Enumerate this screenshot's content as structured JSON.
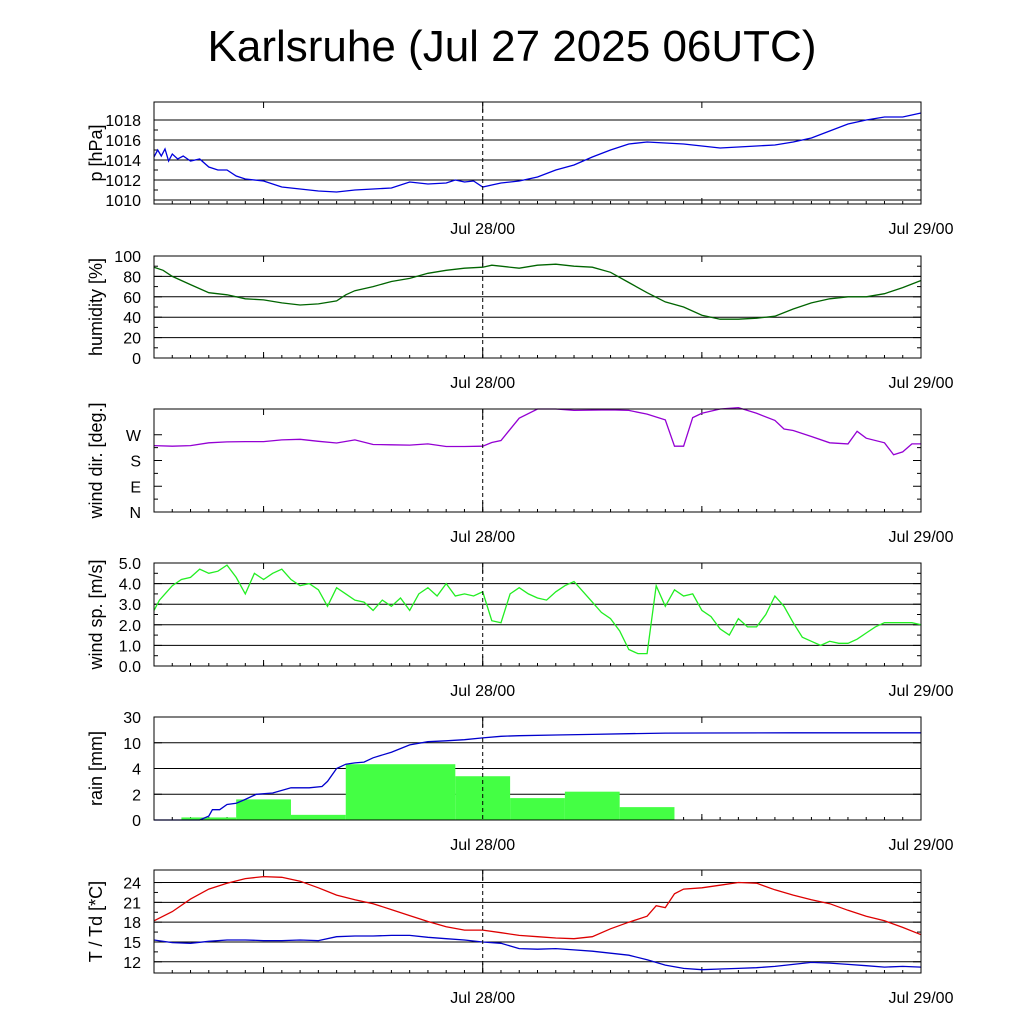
{
  "title": "Karlsruhe (Jul 27 2025 06UTC)",
  "colors": {
    "pressure": "#0000dd",
    "humidity": "#006400",
    "wind_dir": "#9400d3",
    "wind_speed": "#22ee22",
    "rain_bar": "#44ff44",
    "rain_cum": "#0000cc",
    "temperature": "#dd0000",
    "dewpoint": "#0000cc"
  },
  "x_axis": {
    "start": "Jul 27 06:00",
    "end": "Jul 29 00:00",
    "tick_labels": [
      "Jul 28/00",
      "Jul 29/00"
    ],
    "tick_hours": [
      18,
      42
    ],
    "minor_tick_hours": [
      6,
      30
    ],
    "reference_line_hour": 18,
    "range_hours": [
      0,
      42
    ]
  },
  "chart_data": [
    {
      "id": "pressure",
      "type": "line",
      "ylabel": "p [hPa]",
      "ylim": [
        1009.6,
        1019.8
      ],
      "yticks": [
        1010,
        1012,
        1014,
        1016,
        1018
      ],
      "ytick_labels": [
        "1010",
        "1012",
        "1014",
        "1016",
        "1018"
      ],
      "grid": true,
      "series": [
        {
          "color_key": "pressure",
          "x": [
            0,
            0.2,
            0.4,
            0.6,
            0.8,
            1,
            1.3,
            1.6,
            2,
            2.5,
            3,
            3.5,
            4,
            4.5,
            5,
            6,
            7,
            8,
            9,
            10,
            11,
            12,
            13,
            14,
            15,
            16,
            16.5,
            17,
            17.5,
            18,
            18.5,
            19,
            20,
            21,
            22,
            23,
            24,
            25,
            26,
            27,
            28,
            29,
            30,
            31,
            32,
            33,
            34,
            35,
            36,
            37,
            38,
            39,
            40,
            41,
            42
          ],
          "y": [
            1014.3,
            1015.0,
            1014.4,
            1015.1,
            1013.9,
            1014.6,
            1014.1,
            1014.4,
            1013.9,
            1014.1,
            1013.3,
            1013.0,
            1013.0,
            1012.4,
            1012.1,
            1011.9,
            1011.3,
            1011.1,
            1010.9,
            1010.8,
            1011.0,
            1011.1,
            1011.2,
            1011.8,
            1011.6,
            1011.7,
            1012.0,
            1011.8,
            1011.9,
            1011.3,
            1011.5,
            1011.7,
            1011.9,
            1012.3,
            1013.0,
            1013.5,
            1014.3,
            1015.0,
            1015.6,
            1015.8,
            1015.7,
            1015.6,
            1015.4,
            1015.2,
            1015.3,
            1015.4,
            1015.5,
            1015.8,
            1016.2,
            1016.9,
            1017.6,
            1018.0,
            1018.3,
            1018.3,
            1018.7
          ]
        }
      ]
    },
    {
      "id": "humidity",
      "type": "line",
      "ylabel": "humidity [%]",
      "ylim": [
        0,
        100
      ],
      "yticks": [
        0,
        20,
        40,
        60,
        80,
        100
      ],
      "ytick_labels": [
        "0",
        "20",
        "40",
        "60",
        "80",
        "100"
      ],
      "grid": true,
      "series": [
        {
          "color_key": "humidity",
          "x": [
            0,
            0.5,
            1,
            2,
            3,
            4,
            5,
            6,
            7,
            8,
            9,
            10,
            10.5,
            11,
            12,
            13,
            14,
            15,
            16,
            17,
            18,
            18.5,
            19,
            20,
            21,
            22,
            23,
            24,
            25,
            26,
            27,
            28,
            29,
            30,
            31,
            32,
            33,
            34,
            35,
            36,
            37,
            38,
            39,
            40,
            41,
            42
          ],
          "y": [
            89,
            86,
            80,
            72,
            64,
            62,
            58,
            57,
            54,
            52,
            53,
            56,
            62,
            66,
            70,
            75,
            78,
            83,
            86,
            88,
            89,
            91,
            90,
            88,
            91,
            92,
            90,
            89,
            84,
            74,
            64,
            55,
            50,
            42,
            38,
            38,
            39,
            41,
            48,
            54,
            58,
            60,
            60,
            63,
            69,
            76
          ]
        }
      ]
    },
    {
      "id": "wind_dir",
      "type": "line",
      "ylabel": "wind dir. [deg.]",
      "ylim": [
        0,
        360
      ],
      "yticks": [
        0,
        90,
        180,
        270
      ],
      "ytick_labels": [
        "N",
        "E",
        "S",
        "W"
      ],
      "grid": false,
      "series": [
        {
          "color_key": "wind_dir",
          "x": [
            0,
            1,
            2,
            3,
            4,
            5,
            6,
            7,
            8,
            9,
            10,
            11,
            12,
            13,
            14,
            15,
            16,
            17,
            18,
            18.5,
            19,
            20,
            21,
            22,
            23,
            24,
            25,
            26,
            27,
            28,
            28.5,
            29,
            29.5,
            30,
            31,
            32,
            33,
            34,
            34.5,
            35,
            36,
            37,
            38,
            38.5,
            39,
            40,
            40.5,
            41,
            41.5,
            42
          ],
          "y": [
            232,
            230,
            232,
            242,
            245,
            246,
            246,
            252,
            254,
            247,
            241,
            252,
            236,
            235,
            234,
            238,
            229,
            229,
            230,
            243,
            250,
            328,
            360,
            360,
            355,
            356,
            357,
            355,
            342,
            322,
            230,
            230,
            330,
            345,
            360,
            365,
            345,
            320,
            290,
            285,
            264,
            242,
            238,
            282,
            258,
            242,
            200,
            210,
            238,
            238
          ]
        }
      ]
    },
    {
      "id": "wind_speed",
      "type": "line",
      "ylabel": "wind sp. [m/s]",
      "ylim": [
        0,
        5
      ],
      "yticks": [
        0,
        1,
        2,
        3,
        4,
        5
      ],
      "ytick_labels": [
        "0.0",
        "1.0",
        "2.0",
        "3.0",
        "4.0",
        "5.0"
      ],
      "grid": true,
      "series": [
        {
          "color_key": "wind_speed",
          "x": [
            0,
            0.3,
            0.6,
            1,
            1.5,
            2,
            2.5,
            3,
            3.5,
            4,
            4.5,
            5,
            5.5,
            6,
            6.5,
            7,
            7.5,
            8,
            8.5,
            9,
            9.5,
            10,
            10.5,
            11,
            11.5,
            12,
            12.5,
            13,
            13.5,
            14,
            14.5,
            15,
            15.5,
            16,
            16.5,
            17,
            17.5,
            18,
            18.5,
            19,
            19.5,
            20,
            20.5,
            21,
            21.5,
            22,
            22.5,
            23,
            23.5,
            24,
            24.5,
            25,
            25.5,
            26,
            26.5,
            27,
            27.5,
            28,
            28.5,
            29,
            29.5,
            30,
            30.5,
            31,
            31.5,
            32,
            32.5,
            33,
            33.5,
            34,
            34.5,
            35,
            35.5,
            36,
            36.5,
            37,
            37.5,
            38,
            38.5,
            39,
            39.5,
            40,
            40.5,
            41,
            41.5,
            42
          ],
          "y": [
            2.7,
            3.2,
            3.5,
            3.9,
            4.2,
            4.3,
            4.7,
            4.5,
            4.6,
            4.9,
            4.3,
            3.5,
            4.5,
            4.2,
            4.5,
            4.7,
            4.2,
            3.9,
            4.0,
            3.7,
            2.9,
            3.8,
            3.5,
            3.2,
            3.1,
            2.7,
            3.2,
            2.9,
            3.3,
            2.7,
            3.5,
            3.8,
            3.4,
            4.0,
            3.4,
            3.5,
            3.4,
            3.6,
            2.2,
            2.1,
            3.5,
            3.8,
            3.5,
            3.3,
            3.2,
            3.6,
            3.9,
            4.1,
            3.6,
            3.1,
            2.6,
            2.3,
            1.7,
            0.8,
            0.6,
            0.6,
            3.9,
            2.9,
            3.7,
            3.4,
            3.5,
            2.7,
            2.4,
            1.8,
            1.5,
            2.3,
            1.9,
            1.9,
            2.5,
            3.4,
            2.9,
            2.1,
            1.4,
            1.2,
            1.0,
            1.2,
            1.1,
            1.1,
            1.3,
            1.6,
            1.9,
            2.1,
            2.1,
            2.1,
            2.1,
            2.0
          ]
        }
      ]
    },
    {
      "id": "rain",
      "type": "bar",
      "ylabel": "rain [mm]",
      "ylim": [
        0,
        30
      ],
      "yticks": [
        0,
        2,
        4,
        10,
        30
      ],
      "ytick_labels": [
        "0",
        "2",
        "4",
        "10",
        "30"
      ],
      "scale_note": "quasi-logarithmic",
      "grid": true,
      "bars": [
        {
          "x0": 1.5,
          "x1": 4.5,
          "value": 0.2
        },
        {
          "x0": 4.5,
          "x1": 7.5,
          "value": 1.6
        },
        {
          "x0": 7.5,
          "x1": 10.5,
          "value": 0.4
        },
        {
          "x0": 10.5,
          "x1": 16.5,
          "value": 5.0
        },
        {
          "x0": 16.5,
          "x1": 19.5,
          "value": 3.4
        },
        {
          "x0": 19.5,
          "x1": 22.5,
          "value": 1.7
        },
        {
          "x0": 22.5,
          "x1": 25.5,
          "value": 2.2
        },
        {
          "x0": 25.5,
          "x1": 28.5,
          "value": 1.0
        }
      ],
      "cumulative": {
        "color_key": "rain_cum",
        "x": [
          0,
          2.5,
          3,
          3.2,
          3.6,
          4,
          4.5,
          5,
          5.6,
          6.5,
          7.5,
          8.5,
          9.2,
          9.5,
          10,
          10.5,
          11,
          11.5,
          12,
          13,
          14,
          15,
          16,
          17,
          18,
          19,
          20,
          22,
          24,
          26,
          28,
          30,
          35,
          42
        ],
        "y": [
          0,
          0,
          0.3,
          0.8,
          0.8,
          1.2,
          1.3,
          1.6,
          2.0,
          2.1,
          2.5,
          2.5,
          2.6,
          3.0,
          4.0,
          5.0,
          5.3,
          5.5,
          6.5,
          7.8,
          9.5,
          10.8,
          11.5,
          12.4,
          13.8,
          15,
          15.5,
          16,
          16.5,
          17,
          17.5,
          17.6,
          17.7,
          17.7
        ]
      }
    },
    {
      "id": "temperature",
      "type": "line",
      "ylabel": "T / Td [*C]",
      "ylim": [
        10.3,
        25.9
      ],
      "yticks": [
        12,
        15,
        18,
        21,
        24
      ],
      "ytick_labels": [
        "12",
        "15",
        "18",
        "21",
        "24"
      ],
      "grid": true,
      "series": [
        {
          "color_key": "temperature",
          "x": [
            0,
            1,
            2,
            3,
            4,
            5,
            6,
            7,
            8,
            9,
            10,
            11,
            12,
            13,
            14,
            15,
            16,
            17,
            18,
            19,
            20,
            21,
            22,
            23,
            24,
            25,
            26,
            27,
            27.5,
            28,
            28.5,
            29,
            30,
            31,
            32,
            33,
            34,
            35,
            36,
            37,
            38,
            39,
            40,
            41,
            42
          ],
          "y": [
            18.2,
            19.6,
            21.5,
            23.0,
            23.9,
            24.6,
            24.9,
            24.8,
            24.2,
            23.2,
            22.1,
            21.4,
            20.8,
            19.9,
            19.0,
            18.1,
            17.3,
            16.8,
            16.8,
            16.4,
            16.0,
            15.8,
            15.6,
            15.5,
            15.8,
            17.0,
            18.0,
            18.9,
            20.5,
            20.2,
            22.3,
            23.0,
            23.2,
            23.6,
            24.0,
            23.9,
            22.9,
            22.1,
            21.4,
            20.8,
            19.8,
            18.9,
            18.2,
            17.2,
            16.1
          ]
        },
        {
          "color_key": "dewpoint",
          "x": [
            0,
            1,
            2,
            3,
            4,
            5,
            6,
            7,
            8,
            9,
            10,
            11,
            12,
            13,
            14,
            15,
            16,
            17,
            18,
            19,
            20,
            21,
            22,
            23,
            24,
            25,
            26,
            27,
            28,
            29,
            30,
            31,
            32,
            33,
            34,
            35,
            36,
            37,
            38,
            39,
            40,
            41,
            42
          ],
          "y": [
            15.3,
            14.9,
            14.8,
            15.1,
            15.3,
            15.3,
            15.2,
            15.2,
            15.3,
            15.2,
            15.8,
            15.9,
            15.9,
            16.0,
            16.0,
            15.7,
            15.5,
            15.3,
            15.0,
            14.8,
            14.0,
            13.9,
            14.0,
            13.8,
            13.6,
            13.3,
            13.0,
            12.3,
            11.5,
            11.0,
            10.8,
            10.9,
            11.0,
            11.1,
            11.3,
            11.6,
            11.9,
            11.8,
            11.6,
            11.4,
            11.2,
            11.3,
            11.2
          ]
        }
      ]
    }
  ]
}
